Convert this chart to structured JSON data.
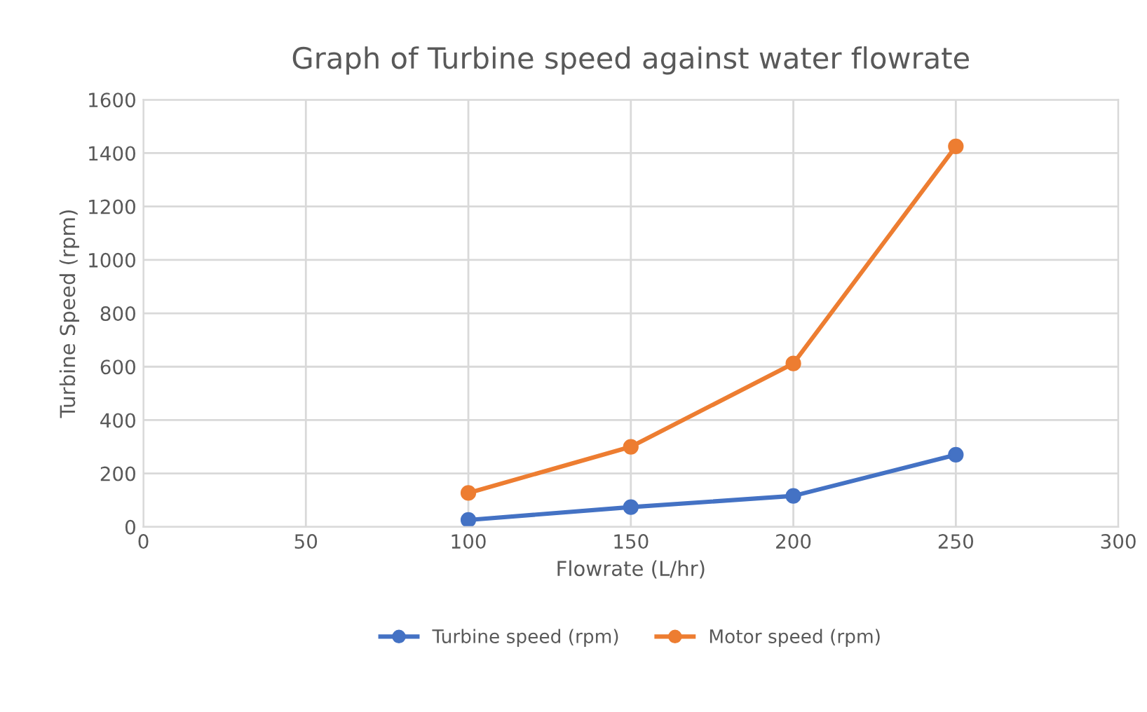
{
  "chart_data": {
    "type": "line",
    "title": "Graph of Turbine speed against water flowrate",
    "xlabel": "Flowrate (L/hr)",
    "ylabel": "Turbine Speed (rpm)",
    "x": [
      100,
      150,
      200,
      250
    ],
    "series": [
      {
        "name": "Turbine speed (rpm)",
        "color": "#4472c4",
        "values": [
          26,
          74,
          116,
          270
        ]
      },
      {
        "name": "Motor speed (rpm)",
        "color": "#ed7d31",
        "values": [
          127,
          300,
          612,
          1425
        ]
      }
    ],
    "xlim": [
      0,
      300
    ],
    "xticks": [
      0,
      50,
      100,
      150,
      200,
      250,
      300
    ],
    "ylim": [
      0,
      1600
    ],
    "yticks": [
      0,
      200,
      400,
      600,
      800,
      1000,
      1200,
      1400,
      1600
    ],
    "grid": true,
    "legend": "bottom",
    "marker": "circle",
    "line_style": "solid"
  }
}
